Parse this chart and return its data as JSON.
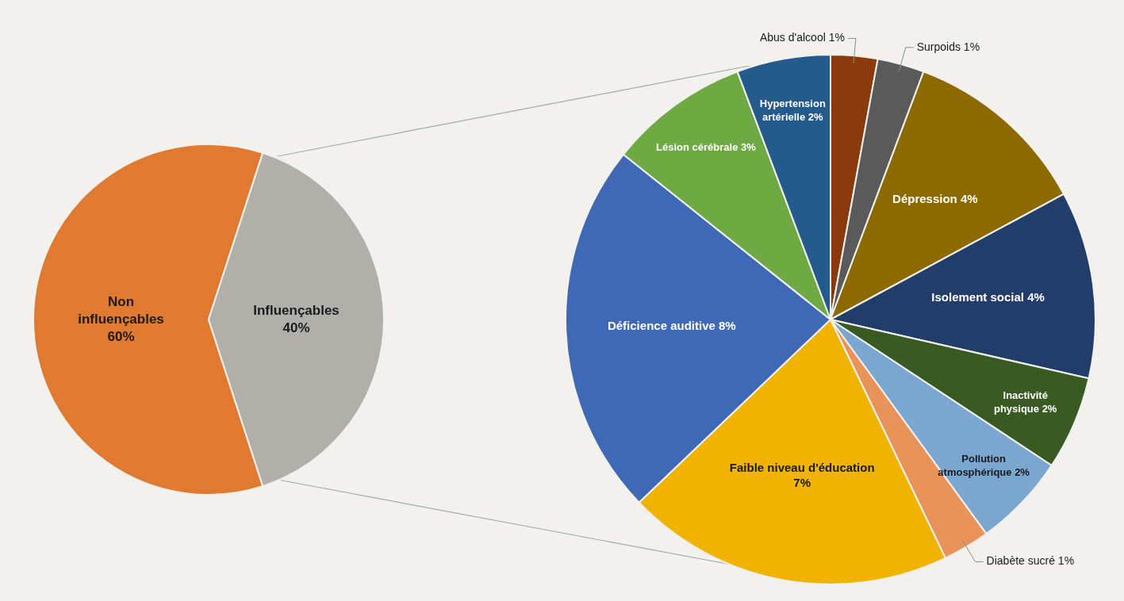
{
  "chart_data": [
    {
      "type": "pie",
      "categories": [
        "Non influençables",
        "Influençables"
      ],
      "values": [
        60,
        40
      ],
      "value_labels": [
        "60%",
        "40%"
      ],
      "colors": [
        "#e07a30",
        "#b0afaa"
      ]
    },
    {
      "type": "pie",
      "categories": [
        "Abus d'alcool",
        "Surpoids",
        "Dépression",
        "Isolement social",
        "Inactivité physique",
        "Pollution atmosphérique",
        "Diabète sucré",
        "Faible niveau d'éducation",
        "Déficience auditive",
        "Lésion cérébrale",
        "Hypertension artérielle"
      ],
      "values": [
        1,
        1,
        4,
        4,
        2,
        2,
        1,
        7,
        8,
        3,
        2
      ],
      "value_labels": [
        "1%",
        "1%",
        "4%",
        "4%",
        "2%",
        "2%",
        "1%",
        "7%",
        "8%",
        "3%",
        "2%"
      ],
      "colors": [
        "#8b3a0e",
        "#5a5a5a",
        "#8c6a00",
        "#233d6b",
        "#3a5a23",
        "#7aa6d0",
        "#e8935a",
        "#f0b400",
        "#3f69b5",
        "#6ea944",
        "#255a8c"
      ]
    }
  ]
}
